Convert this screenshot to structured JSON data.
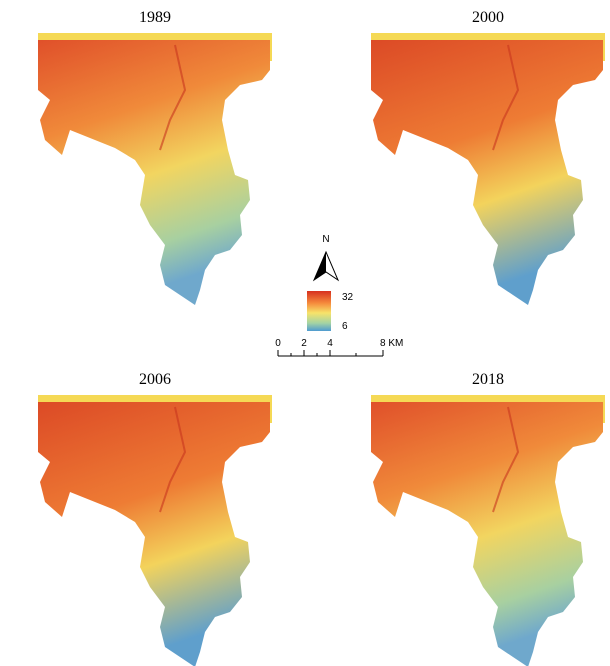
{
  "panels": [
    {
      "title": "1989"
    },
    {
      "title": "2000"
    },
    {
      "title": "2006"
    },
    {
      "title": "2018"
    }
  ],
  "north": "N",
  "legend": {
    "max": 32,
    "min": 6
  },
  "scale_bar": {
    "labels": [
      "0",
      "2",
      "4",
      "8 KM"
    ]
  }
}
